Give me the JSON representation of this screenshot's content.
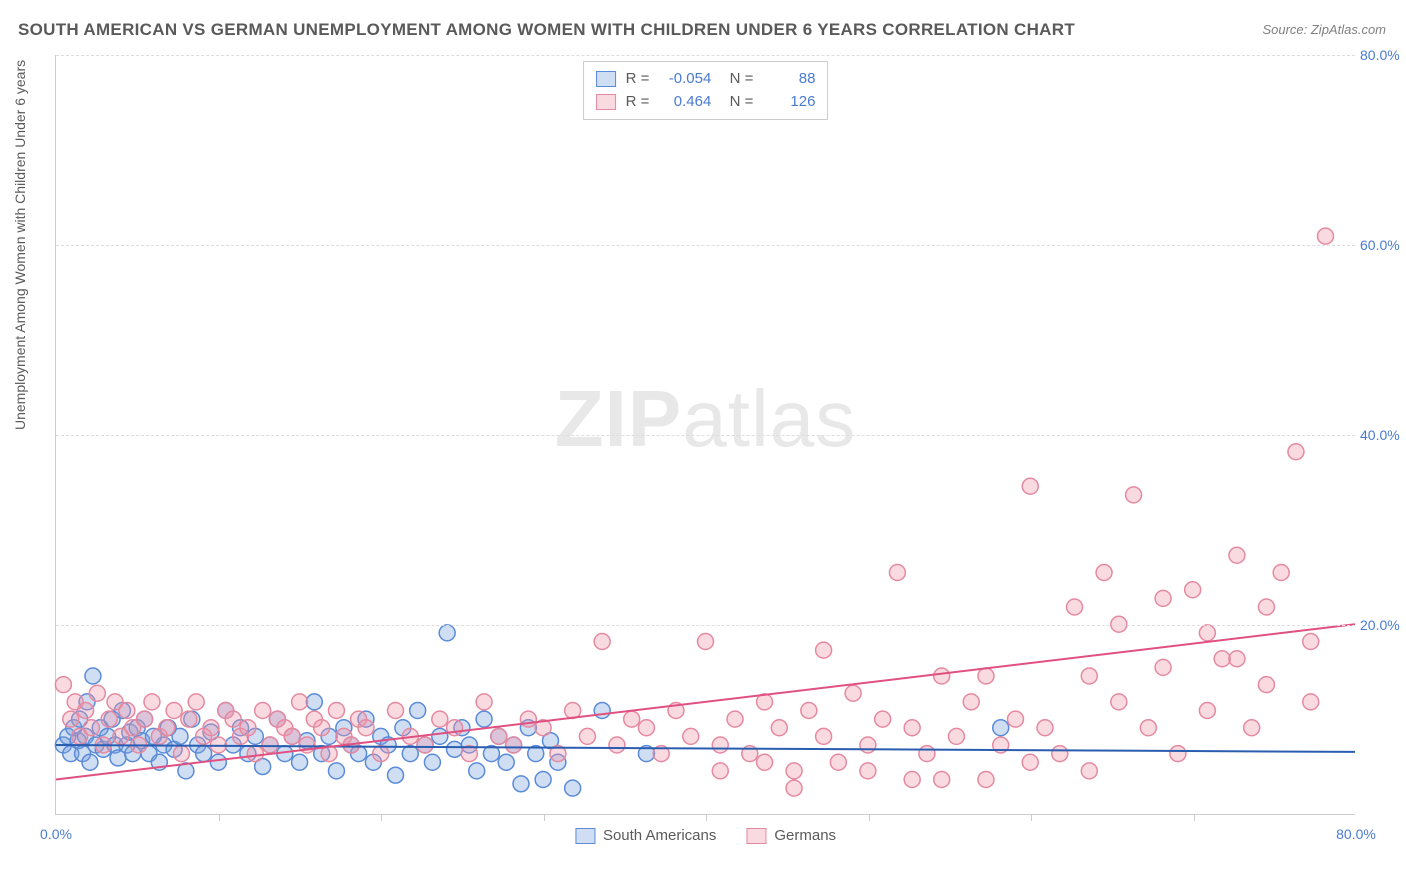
{
  "title": "SOUTH AMERICAN VS GERMAN UNEMPLOYMENT AMONG WOMEN WITH CHILDREN UNDER 6 YEARS CORRELATION CHART",
  "source_label": "Source: ZipAtlas.com",
  "ylabel": "Unemployment Among Women with Children Under 6 years",
  "watermark_bold": "ZIP",
  "watermark_light": "atlas",
  "chart": {
    "type": "scatter",
    "xlim": [
      0,
      88
    ],
    "ylim": [
      0,
      88
    ],
    "xtick_labels": {
      "0": "0.0%",
      "88": "80.0%"
    },
    "ytick_labels": {
      "22": "20.0%",
      "44": "40.0%",
      "66": "60.0%",
      "88": "80.0%"
    },
    "xtick_minor": [
      11,
      22,
      33,
      44,
      55,
      66,
      77
    ],
    "grid_color": "#dddddd",
    "axis_color": "#cccccc",
    "label_color": "#4a7bd0",
    "background_color": "#ffffff",
    "marker_radius": 8,
    "marker_stroke_width": 1.5,
    "line_width": 2,
    "series": [
      {
        "name": "South Americans",
        "fill": "rgba(120,160,220,0.35)",
        "stroke": "#5a8bd8",
        "line_color": "#2a5db0",
        "R": "-0.054",
        "N": "88",
        "trend": {
          "x1": 0,
          "y1": 8.0,
          "x2": 88,
          "y2": 7.2
        },
        "points": [
          [
            0.5,
            8
          ],
          [
            0.8,
            9
          ],
          [
            1,
            7
          ],
          [
            1.2,
            10
          ],
          [
            1.5,
            8.5
          ],
          [
            1.6,
            11
          ],
          [
            1.8,
            7
          ],
          [
            2,
            9
          ],
          [
            2.1,
            13
          ],
          [
            2.3,
            6
          ],
          [
            2.5,
            16
          ],
          [
            2.7,
            8
          ],
          [
            3,
            10
          ],
          [
            3.2,
            7.5
          ],
          [
            3.5,
            9
          ],
          [
            3.8,
            11
          ],
          [
            4,
            8
          ],
          [
            4.2,
            6.5
          ],
          [
            4.5,
            12
          ],
          [
            4.8,
            8
          ],
          [
            5,
            9.5
          ],
          [
            5.2,
            7
          ],
          [
            5.5,
            10
          ],
          [
            5.8,
            8.5
          ],
          [
            6,
            11
          ],
          [
            6.3,
            7
          ],
          [
            6.6,
            9
          ],
          [
            7,
            6
          ],
          [
            7.3,
            8
          ],
          [
            7.6,
            10
          ],
          [
            8,
            7.5
          ],
          [
            8.4,
            9
          ],
          [
            8.8,
            5
          ],
          [
            9.2,
            11
          ],
          [
            9.6,
            8
          ],
          [
            10,
            7
          ],
          [
            10.5,
            9.5
          ],
          [
            11,
            6
          ],
          [
            11.5,
            12
          ],
          [
            12,
            8
          ],
          [
            12.5,
            10
          ],
          [
            13,
            7
          ],
          [
            13.5,
            9
          ],
          [
            14,
            5.5
          ],
          [
            14.5,
            8
          ],
          [
            15,
            11
          ],
          [
            15.5,
            7
          ],
          [
            16,
            9
          ],
          [
            16.5,
            6
          ],
          [
            17,
            8.5
          ],
          [
            17.5,
            13
          ],
          [
            18,
            7
          ],
          [
            18.5,
            9
          ],
          [
            19,
            5
          ],
          [
            19.5,
            10
          ],
          [
            20,
            8
          ],
          [
            20.5,
            7
          ],
          [
            21,
            11
          ],
          [
            21.5,
            6
          ],
          [
            22,
            9
          ],
          [
            22.5,
            8
          ],
          [
            23,
            4.5
          ],
          [
            23.5,
            10
          ],
          [
            24,
            7
          ],
          [
            24.5,
            12
          ],
          [
            25,
            8
          ],
          [
            25.5,
            6
          ],
          [
            26,
            9
          ],
          [
            26.5,
            21
          ],
          [
            27,
            7.5
          ],
          [
            27.5,
            10
          ],
          [
            28,
            8
          ],
          [
            28.5,
            5
          ],
          [
            29,
            11
          ],
          [
            29.5,
            7
          ],
          [
            30,
            9
          ],
          [
            30.5,
            6
          ],
          [
            31,
            8
          ],
          [
            31.5,
            3.5
          ],
          [
            32,
            10
          ],
          [
            32.5,
            7
          ],
          [
            33,
            4
          ],
          [
            33.5,
            8.5
          ],
          [
            34,
            6
          ],
          [
            35,
            3
          ],
          [
            37,
            12
          ],
          [
            40,
            7
          ],
          [
            64,
            10
          ]
        ]
      },
      {
        "name": "Germans",
        "fill": "rgba(240,150,170,0.35)",
        "stroke": "#e589a0",
        "line_color": "#e05080",
        "R": "0.464",
        "N": "126",
        "trend": {
          "x1": 0,
          "y1": 4.0,
          "x2": 88,
          "y2": 22.0
        },
        "points": [
          [
            0.5,
            15
          ],
          [
            1,
            11
          ],
          [
            1.3,
            13
          ],
          [
            1.6,
            9
          ],
          [
            2,
            12
          ],
          [
            2.4,
            10
          ],
          [
            2.8,
            14
          ],
          [
            3.2,
            8
          ],
          [
            3.6,
            11
          ],
          [
            4,
            13
          ],
          [
            4.4,
            9
          ],
          [
            4.8,
            12
          ],
          [
            5.2,
            10
          ],
          [
            5.6,
            8
          ],
          [
            6,
            11
          ],
          [
            6.5,
            13
          ],
          [
            7,
            9
          ],
          [
            7.5,
            10
          ],
          [
            8,
            12
          ],
          [
            8.5,
            7
          ],
          [
            9,
            11
          ],
          [
            9.5,
            13
          ],
          [
            10,
            9
          ],
          [
            10.5,
            10
          ],
          [
            11,
            8
          ],
          [
            11.5,
            12
          ],
          [
            12,
            11
          ],
          [
            12.5,
            9
          ],
          [
            13,
            10
          ],
          [
            13.5,
            7
          ],
          [
            14,
            12
          ],
          [
            14.5,
            8
          ],
          [
            15,
            11
          ],
          [
            15.5,
            10
          ],
          [
            16,
            9
          ],
          [
            16.5,
            13
          ],
          [
            17,
            8
          ],
          [
            17.5,
            11
          ],
          [
            18,
            10
          ],
          [
            18.5,
            7
          ],
          [
            19,
            12
          ],
          [
            19.5,
            9
          ],
          [
            20,
            8
          ],
          [
            20.5,
            11
          ],
          [
            21,
            10
          ],
          [
            22,
            7
          ],
          [
            23,
            12
          ],
          [
            24,
            9
          ],
          [
            25,
            8
          ],
          [
            26,
            11
          ],
          [
            27,
            10
          ],
          [
            28,
            7
          ],
          [
            29,
            13
          ],
          [
            30,
            9
          ],
          [
            31,
            8
          ],
          [
            32,
            11
          ],
          [
            33,
            10
          ],
          [
            34,
            7
          ],
          [
            35,
            12
          ],
          [
            36,
            9
          ],
          [
            37,
            20
          ],
          [
            38,
            8
          ],
          [
            39,
            11
          ],
          [
            40,
            10
          ],
          [
            41,
            7
          ],
          [
            42,
            12
          ],
          [
            43,
            9
          ],
          [
            44,
            20
          ],
          [
            45,
            8
          ],
          [
            46,
            11
          ],
          [
            47,
            7
          ],
          [
            48,
            13
          ],
          [
            49,
            10
          ],
          [
            50,
            5
          ],
          [
            51,
            12
          ],
          [
            52,
            9
          ],
          [
            53,
            6
          ],
          [
            54,
            14
          ],
          [
            55,
            8
          ],
          [
            56,
            11
          ],
          [
            57,
            28
          ],
          [
            58,
            10
          ],
          [
            59,
            7
          ],
          [
            60,
            16
          ],
          [
            61,
            9
          ],
          [
            62,
            13
          ],
          [
            63,
            16
          ],
          [
            64,
            8
          ],
          [
            65,
            11
          ],
          [
            66,
            38
          ],
          [
            67,
            10
          ],
          [
            68,
            7
          ],
          [
            69,
            24
          ],
          [
            70,
            16
          ],
          [
            71,
            28
          ],
          [
            72,
            13
          ],
          [
            73,
            37
          ],
          [
            74,
            10
          ],
          [
            75,
            25
          ],
          [
            76,
            7
          ],
          [
            77,
            26
          ],
          [
            78,
            12
          ],
          [
            79,
            18
          ],
          [
            80,
            30
          ],
          [
            81,
            10
          ],
          [
            82,
            24
          ],
          [
            83,
            28
          ],
          [
            84,
            42
          ],
          [
            85,
            13
          ],
          [
            86,
            67
          ],
          [
            58,
            4
          ],
          [
            50,
            3
          ],
          [
            52,
            19
          ],
          [
            63,
            4
          ],
          [
            55,
            5
          ],
          [
            48,
            6
          ],
          [
            45,
            5
          ],
          [
            60,
            4
          ],
          [
            66,
            6
          ],
          [
            70,
            5
          ],
          [
            72,
            22
          ],
          [
            75,
            17
          ],
          [
            78,
            21
          ],
          [
            80,
            18
          ],
          [
            82,
            15
          ],
          [
            85,
            20
          ]
        ]
      }
    ]
  },
  "bottom_legend": [
    {
      "swatch_fill": "rgba(120,160,220,0.35)",
      "swatch_stroke": "#5a8bd8",
      "label": "South Americans"
    },
    {
      "swatch_fill": "rgba(240,150,170,0.35)",
      "swatch_stroke": "#e589a0",
      "label": "Germans"
    }
  ]
}
